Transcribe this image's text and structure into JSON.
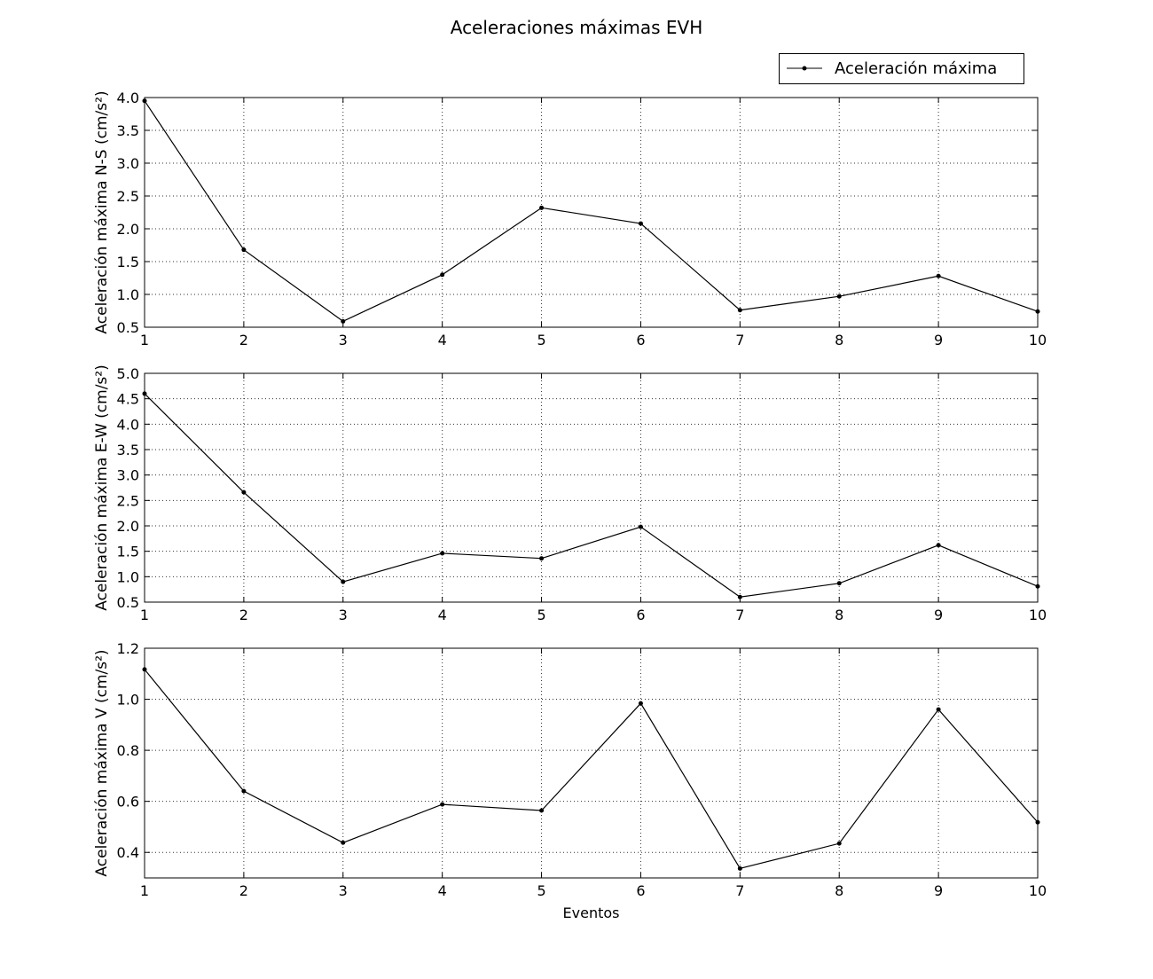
{
  "title": "Aceleraciones máximas EVH",
  "legend": {
    "label": "Aceleración máxima",
    "placement": "top-right"
  },
  "chart_data": [
    {
      "type": "line",
      "x": [
        1,
        2,
        3,
        4,
        5,
        6,
        7,
        8,
        9,
        10
      ],
      "values": [
        3.95,
        1.68,
        0.59,
        1.3,
        2.32,
        2.08,
        0.76,
        0.97,
        1.28,
        0.74
      ],
      "xlabel": "",
      "ylabel": "Aceleración máxima N-S (cm/s²)",
      "xlim": [
        1,
        10
      ],
      "ylim": [
        0.5,
        4.0
      ],
      "yticks": [
        "0.5",
        "1.0",
        "1.5",
        "2.0",
        "2.5",
        "3.0",
        "3.5",
        "4.0"
      ],
      "xticks": [
        "1",
        "2",
        "3",
        "4",
        "5",
        "6",
        "7",
        "8",
        "9",
        "10"
      ],
      "grid": true,
      "color": "#000000"
    },
    {
      "type": "line",
      "x": [
        1,
        2,
        3,
        4,
        5,
        6,
        7,
        8,
        9,
        10
      ],
      "values": [
        4.6,
        2.66,
        0.9,
        1.46,
        1.36,
        1.98,
        0.6,
        0.87,
        1.62,
        0.81
      ],
      "xlabel": "",
      "ylabel": "Aceleración máxima E-W (cm/s²)",
      "xlim": [
        1,
        10
      ],
      "ylim": [
        0.5,
        5.0
      ],
      "yticks": [
        "0.5",
        "1.0",
        "1.5",
        "2.0",
        "2.5",
        "3.0",
        "3.5",
        "4.0",
        "4.5",
        "5.0"
      ],
      "xticks": [
        "1",
        "2",
        "3",
        "4",
        "5",
        "6",
        "7",
        "8",
        "9",
        "10"
      ],
      "grid": true,
      "color": "#000000"
    },
    {
      "type": "line",
      "x": [
        1,
        2,
        3,
        4,
        5,
        6,
        7,
        8,
        9,
        10
      ],
      "values": [
        1.117,
        0.64,
        0.438,
        0.588,
        0.564,
        0.984,
        0.337,
        0.435,
        0.96,
        0.518
      ],
      "xlabel": "Eventos",
      "ylabel": "Aceleración máxima V (cm/s²)",
      "xlim": [
        1,
        10
      ],
      "ylim": [
        0.3,
        1.2
      ],
      "yticks": [
        "0.4",
        "0.6",
        "0.8",
        "1.0",
        "1.2"
      ],
      "xticks": [
        "1",
        "2",
        "3",
        "4",
        "5",
        "6",
        "7",
        "8",
        "9",
        "10"
      ],
      "grid": true,
      "color": "#000000"
    }
  ]
}
